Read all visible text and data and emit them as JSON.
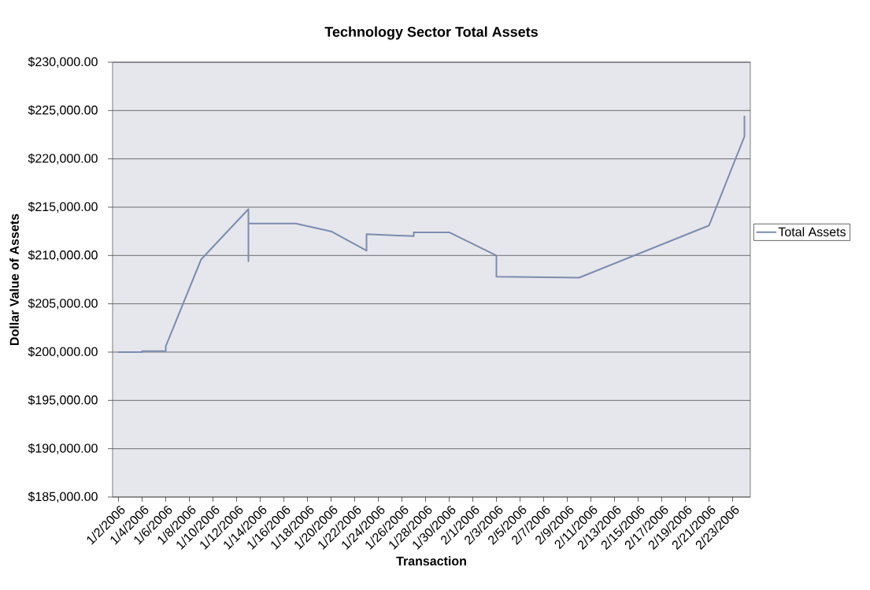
{
  "chart_data": {
    "type": "line",
    "title": "Technology Sector Total Assets",
    "xlabel": "Transaction",
    "ylabel": "Dollar Value of Assets",
    "x": [
      "2006-01-02",
      "2006-01-04",
      "2006-01-04",
      "2006-01-06",
      "2006-01-06",
      "2006-01-09",
      "2006-01-13",
      "2006-01-13",
      "2006-01-13",
      "2006-01-17",
      "2006-01-20",
      "2006-01-23",
      "2006-01-23",
      "2006-01-27",
      "2006-01-27",
      "2006-01-30",
      "2006-02-03",
      "2006-02-03",
      "2006-02-10",
      "2006-02-21",
      "2006-02-24",
      "2006-02-24"
    ],
    "series": [
      {
        "name": "Total Assets",
        "color": "#7b8cb0",
        "values": [
          200000,
          200000,
          200100,
          200100,
          200600,
          209600,
          214800,
          209400,
          213300,
          213300,
          212500,
          210500,
          212200,
          212000,
          212400,
          212400,
          210000,
          207800,
          207700,
          213100,
          222300,
          224400
        ]
      }
    ],
    "xlim": [
      "2006-01-01T12:00",
      "2006-02-24T12:00"
    ],
    "xticks": [
      {
        "value": "2006-01-02",
        "label": "1/2/2006"
      },
      {
        "value": "2006-01-04",
        "label": "1/4/2006"
      },
      {
        "value": "2006-01-06",
        "label": "1/6/2006"
      },
      {
        "value": "2006-01-08",
        "label": "1/8/2006"
      },
      {
        "value": "2006-01-10",
        "label": "1/10/2006"
      },
      {
        "value": "2006-01-12",
        "label": "1/12/2006"
      },
      {
        "value": "2006-01-14",
        "label": "1/14/2006"
      },
      {
        "value": "2006-01-16",
        "label": "1/16/2006"
      },
      {
        "value": "2006-01-18",
        "label": "1/18/2006"
      },
      {
        "value": "2006-01-20",
        "label": "1/20/2006"
      },
      {
        "value": "2006-01-22",
        "label": "1/22/2006"
      },
      {
        "value": "2006-01-24",
        "label": "1/24/2006"
      },
      {
        "value": "2006-01-26",
        "label": "1/26/2006"
      },
      {
        "value": "2006-01-28",
        "label": "1/28/2006"
      },
      {
        "value": "2006-01-30",
        "label": "1/30/2006"
      },
      {
        "value": "2006-02-01",
        "label": "2/1/2006"
      },
      {
        "value": "2006-02-03",
        "label": "2/3/2006"
      },
      {
        "value": "2006-02-05",
        "label": "2/5/2006"
      },
      {
        "value": "2006-02-07",
        "label": "2/7/2006"
      },
      {
        "value": "2006-02-09",
        "label": "2/9/2006"
      },
      {
        "value": "2006-02-11",
        "label": "2/11/2006"
      },
      {
        "value": "2006-02-13",
        "label": "2/13/2006"
      },
      {
        "value": "2006-02-15",
        "label": "2/15/2006"
      },
      {
        "value": "2006-02-17",
        "label": "2/17/2006"
      },
      {
        "value": "2006-02-19",
        "label": "2/19/2006"
      },
      {
        "value": "2006-02-21",
        "label": "2/21/2006"
      },
      {
        "value": "2006-02-23",
        "label": "2/23/2006"
      }
    ],
    "ylim": [
      185000,
      230000
    ],
    "yticks": [
      {
        "value": 185000,
        "label": "$185,000.00"
      },
      {
        "value": 190000,
        "label": "$190,000.00"
      },
      {
        "value": 195000,
        "label": "$195,000.00"
      },
      {
        "value": 200000,
        "label": "$200,000.00"
      },
      {
        "value": 205000,
        "label": "$205,000.00"
      },
      {
        "value": 210000,
        "label": "$210,000.00"
      },
      {
        "value": 215000,
        "label": "$215,000.00"
      },
      {
        "value": 220000,
        "label": "$220,000.00"
      },
      {
        "value": 225000,
        "label": "$225,000.00"
      },
      {
        "value": 230000,
        "label": "$230,000.00"
      }
    ],
    "grid": "y",
    "legend": "right"
  }
}
